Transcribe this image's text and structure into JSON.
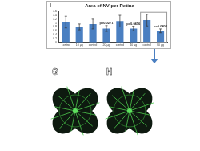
{
  "chart_data": {
    "type": "bar",
    "panel_label": "I",
    "title": "Area of NV per Retina",
    "categories": [
      "control",
      "10 µg",
      "control",
      "20 µg",
      "control",
      "40 µg",
      "control",
      "80 µg"
    ],
    "values": [
      1.05,
      0.8,
      0.95,
      0.72,
      1.1,
      0.72,
      1.15,
      0.6
    ],
    "errors": [
      0.3,
      0.15,
      0.25,
      0.15,
      0.3,
      0.12,
      0.3,
      0.1
    ],
    "color": "#4a7fc1",
    "ylim": [
      0,
      1.6
    ],
    "yticks": [
      0,
      0.2,
      0.4,
      0.6,
      0.8,
      1,
      1.2,
      1.4,
      1.6
    ],
    "grid": false,
    "annotations": [
      {
        "text": "p=0.0271",
        "category_index": 3
      },
      {
        "text": "p=0.0416",
        "category_index": 5
      },
      {
        "text": "p=0.0402",
        "category_index": 7
      }
    ]
  },
  "panels": [
    {
      "label": "G"
    },
    {
      "label": "H"
    }
  ]
}
